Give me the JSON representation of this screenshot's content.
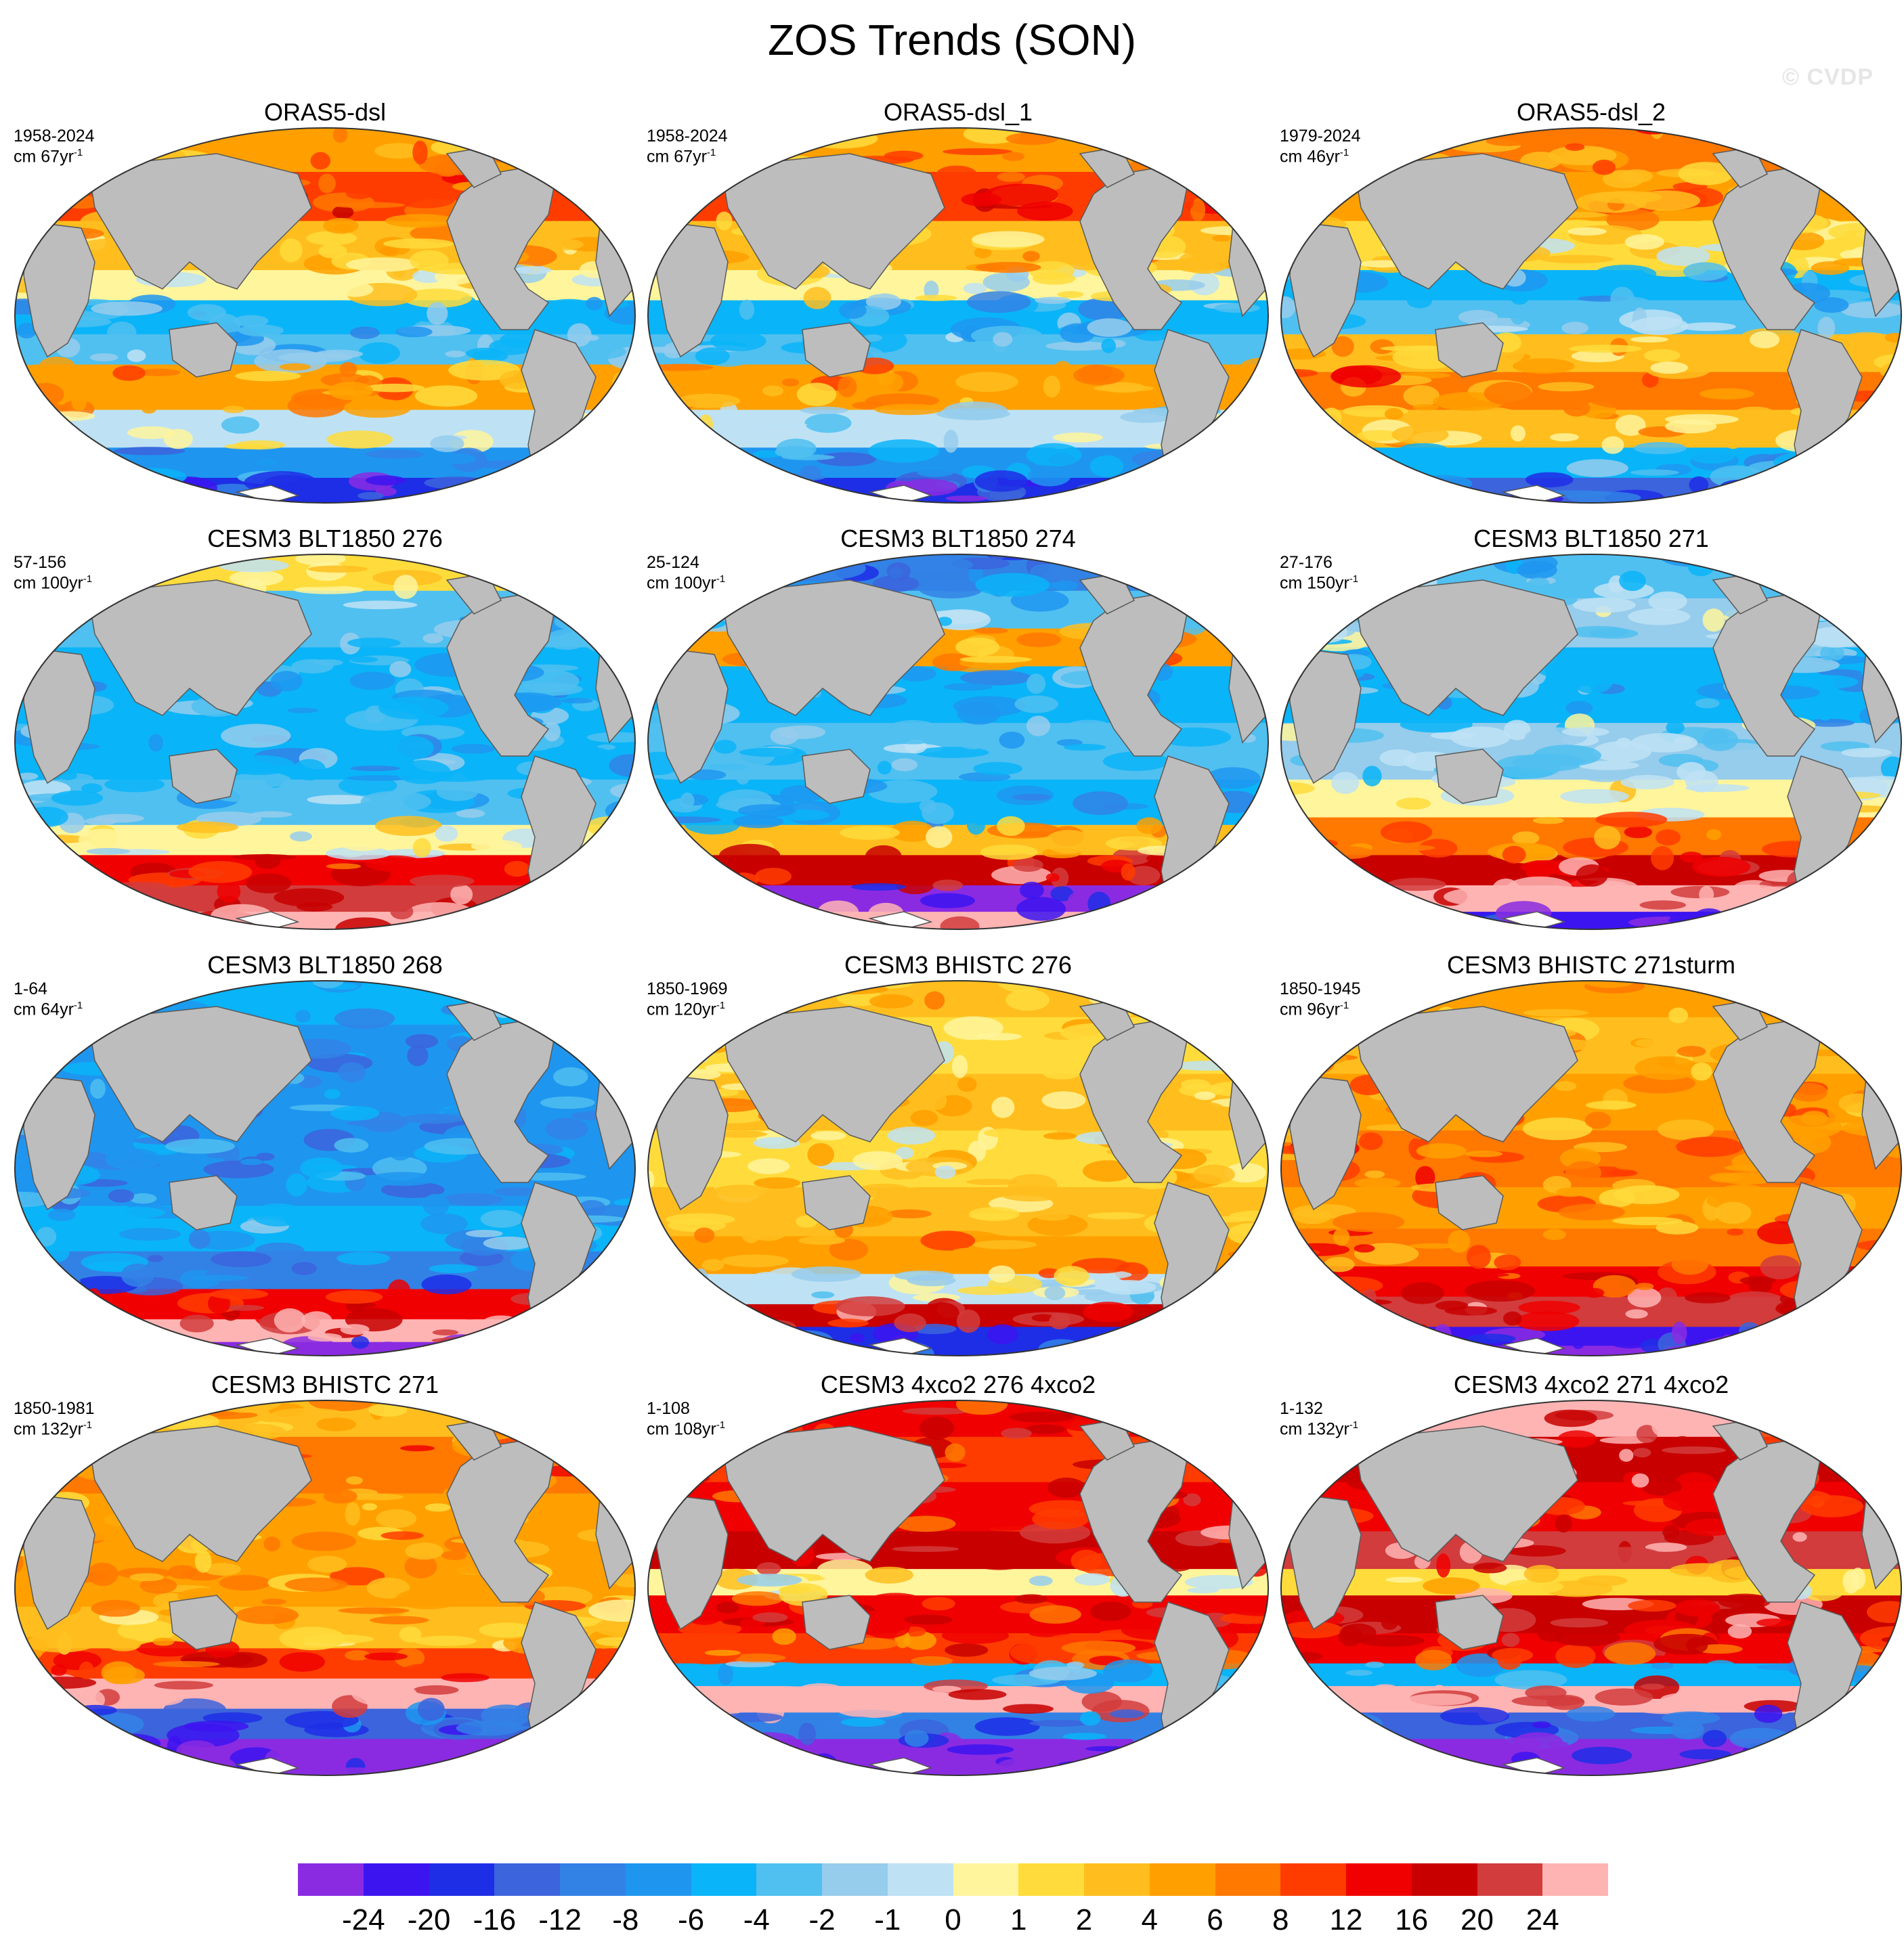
{
  "title": "ZOS Trends (SON)",
  "watermark": "© CVDP",
  "panels": [
    {
      "title": "ORAS5-dsl",
      "years": "1958-2024",
      "units": "cm 67yr",
      "units_exp": "-1",
      "pattern": "oras",
      "seed": 11
    },
    {
      "title": "ORAS5-dsl_1",
      "years": "1958-2024",
      "units": "cm 67yr",
      "units_exp": "-1",
      "pattern": "oras",
      "seed": 12
    },
    {
      "title": "ORAS5-dsl_2",
      "years": "1979-2024",
      "units": "cm 46yr",
      "units_exp": "-1",
      "pattern": "oras2",
      "seed": 13
    },
    {
      "title": "CESM3 BLT1850 276",
      "years": "57-156",
      "units": "cm 100yr",
      "units_exp": "-1",
      "pattern": "ctrl",
      "seed": 21
    },
    {
      "title": "CESM3 BLT1850 274",
      "years": "25-124",
      "units": "cm 100yr",
      "units_exp": "-1",
      "pattern": "ctrl2",
      "seed": 22
    },
    {
      "title": "CESM3 BLT1850 271",
      "years": "27-176",
      "units": "cm 150yr",
      "units_exp": "-1",
      "pattern": "ctrl3",
      "seed": 23
    },
    {
      "title": "CESM3 BLT1850 268",
      "years": "1-64",
      "units": "cm 64yr",
      "units_exp": "-1",
      "pattern": "ctrl4",
      "seed": 31
    },
    {
      "title": "CESM3 BHISTC 276",
      "years": "1850-1969",
      "units": "cm 120yr",
      "units_exp": "-1",
      "pattern": "hist",
      "seed": 32
    },
    {
      "title": "CESM3 BHISTC 271sturm",
      "years": "1850-1945",
      "units": "cm 96yr",
      "units_exp": "-1",
      "pattern": "hist2",
      "seed": 33
    },
    {
      "title": "CESM3 BHISTC 271",
      "years": "1850-1981",
      "units": "cm 132yr",
      "units_exp": "-1",
      "pattern": "hist3",
      "seed": 41
    },
    {
      "title": "CESM3 4xco2 276 4xco2",
      "years": "1-108",
      "units": "cm 108yr",
      "units_exp": "-1",
      "pattern": "co2",
      "seed": 42
    },
    {
      "title": "CESM3 4xco2 271 4xco2",
      "years": "1-132",
      "units": "cm 132yr",
      "units_exp": "-1",
      "pattern": "co2b",
      "seed": 43
    }
  ],
  "colorbar": {
    "colors": [
      "#8a2be2",
      "#3c14f0",
      "#1e2ee6",
      "#3c64dc",
      "#3282e6",
      "#1e96f0",
      "#0ab4f8",
      "#50c0f0",
      "#96ccec",
      "#bee2f4",
      "#fff59c",
      "#ffdc3c",
      "#ffbe1e",
      "#ffa000",
      "#ff7800",
      "#ff3c00",
      "#f00000",
      "#c80000",
      "#d23c3c",
      "#ffb4b4"
    ],
    "labels": [
      "-24",
      "-20",
      "-16",
      "-12",
      "-8",
      "-6",
      "-4",
      "-2",
      "-1",
      "0",
      "1",
      "2",
      "4",
      "6",
      "8",
      "12",
      "16",
      "20",
      "24"
    ]
  }
}
